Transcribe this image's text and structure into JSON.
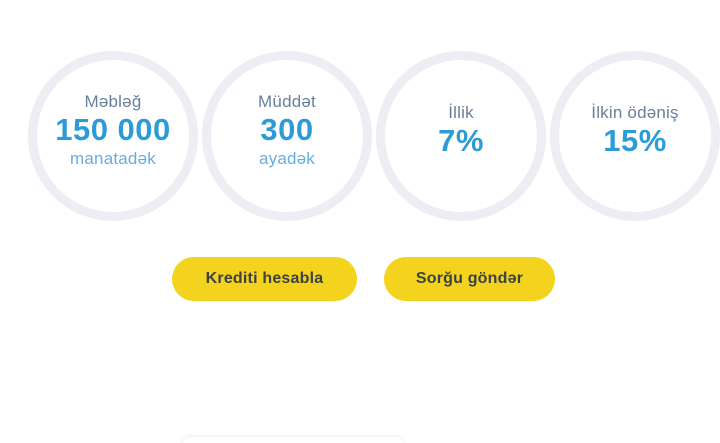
{
  "stats": [
    {
      "id": "amount",
      "label_top": "Məbləğ",
      "value": "150 000",
      "label_bottom": "manatadək"
    },
    {
      "id": "term",
      "label_top": "Müddət",
      "value": "300",
      "label_bottom": "ayadək"
    },
    {
      "id": "annual-rate",
      "label_top": "İllik",
      "value": "7%",
      "label_bottom": ""
    },
    {
      "id": "initial-payment",
      "label_top": "İlkin ödəniş",
      "value": "15%",
      "label_bottom": ""
    }
  ],
  "buttons": {
    "calculate_label": "Krediti hesabla",
    "send_request_label": "Sorğu göndər"
  },
  "colors": {
    "background": "#ffffff",
    "circle_ring": "#eceef4",
    "stat_label_slate": "#697f9a",
    "stat_value_blue": "#2d9bd7",
    "stat_label_light_blue": "#68aedd",
    "button_yellow": "#f3d31d",
    "button_text": "#3e4142"
  }
}
